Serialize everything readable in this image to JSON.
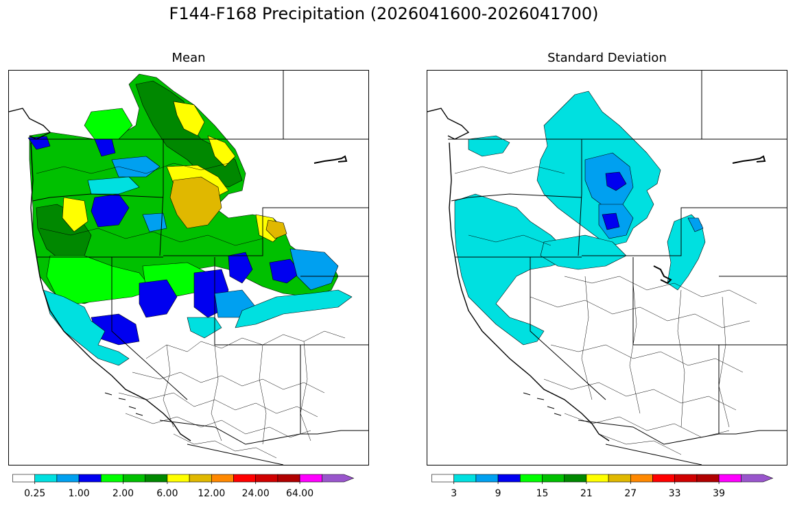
{
  "figure": {
    "title": "F144-F168 Precipitation (2026041600-2026041700)"
  },
  "panels": [
    {
      "id": "mean",
      "title": "Mean",
      "colorbar": {
        "colors": [
          "#ffffff",
          "#00e0e0",
          "#00a0f0",
          "#0000f0",
          "#00ff00",
          "#00c000",
          "#008800",
          "#ffff00",
          "#e0b800",
          "#ff8800",
          "#ff0000",
          "#d00000",
          "#b00000",
          "#ff00ff",
          "#9955cc"
        ],
        "ticks": [
          "0.25",
          "1.00",
          "2.00",
          "6.00",
          "12.00",
          "24.00",
          "64.00"
        ],
        "extend": "max"
      }
    },
    {
      "id": "std",
      "title": "Standard Deviation",
      "colorbar": {
        "colors": [
          "#ffffff",
          "#00e0e0",
          "#00a0f0",
          "#0000f0",
          "#00ff00",
          "#00c000",
          "#008800",
          "#ffff00",
          "#e0b800",
          "#ff8800",
          "#ff0000",
          "#d00000",
          "#b00000",
          "#ff00ff",
          "#9955cc"
        ],
        "ticks": [
          "3",
          "9",
          "15",
          "21",
          "27",
          "33",
          "39"
        ],
        "extend": "max"
      }
    }
  ]
}
